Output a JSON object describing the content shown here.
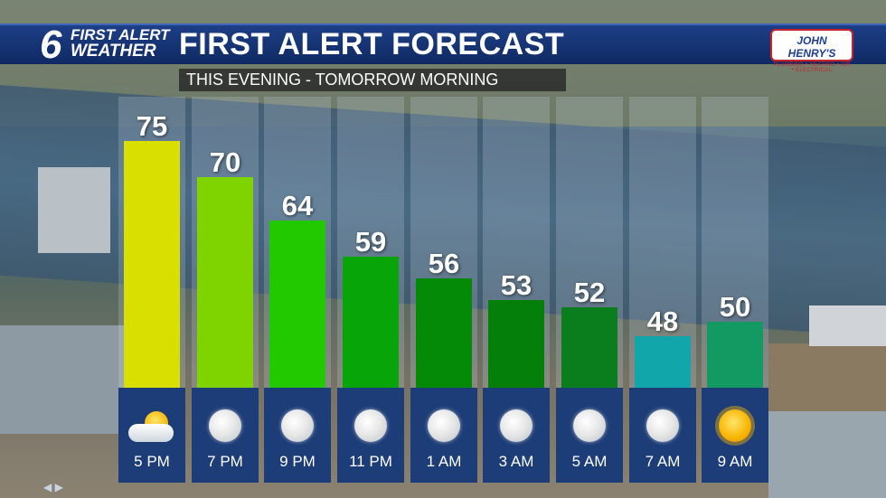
{
  "header": {
    "logo_number": "6",
    "logo_line1": "FIRST ALERT",
    "logo_line2": "WEATHER",
    "title": "FIRST ALERT FORECAST",
    "sponsor_name": "JOHN HENRY'S",
    "sponsor_tagline": "PLUMBING • HEATING • AIR • ELECTRICAL"
  },
  "subtitle": "THIS EVENING - TOMORROW MORNING",
  "colors": {
    "header_bg": "#1d3f86",
    "bottom_panel": "#1d3d78"
  },
  "chart_data": {
    "type": "bar",
    "categories": [
      "5 PM",
      "7 PM",
      "9 PM",
      "11 PM",
      "1 AM",
      "3 AM",
      "5 AM",
      "7 AM",
      "9 AM"
    ],
    "values": [
      75,
      70,
      64,
      59,
      56,
      53,
      52,
      48,
      50
    ],
    "bar_colors": [
      "#d9e000",
      "#7fd400",
      "#22c900",
      "#08a508",
      "#048a06",
      "#04800a",
      "#0a7d1c",
      "#11a7aa",
      "#129a62"
    ],
    "icons": [
      "partly-sunny-icon",
      "moon-icon",
      "moon-icon",
      "moon-icon",
      "moon-icon",
      "moon-icon",
      "moon-icon",
      "moon-icon",
      "sun-icon"
    ],
    "ylim": [
      0,
      80
    ]
  }
}
